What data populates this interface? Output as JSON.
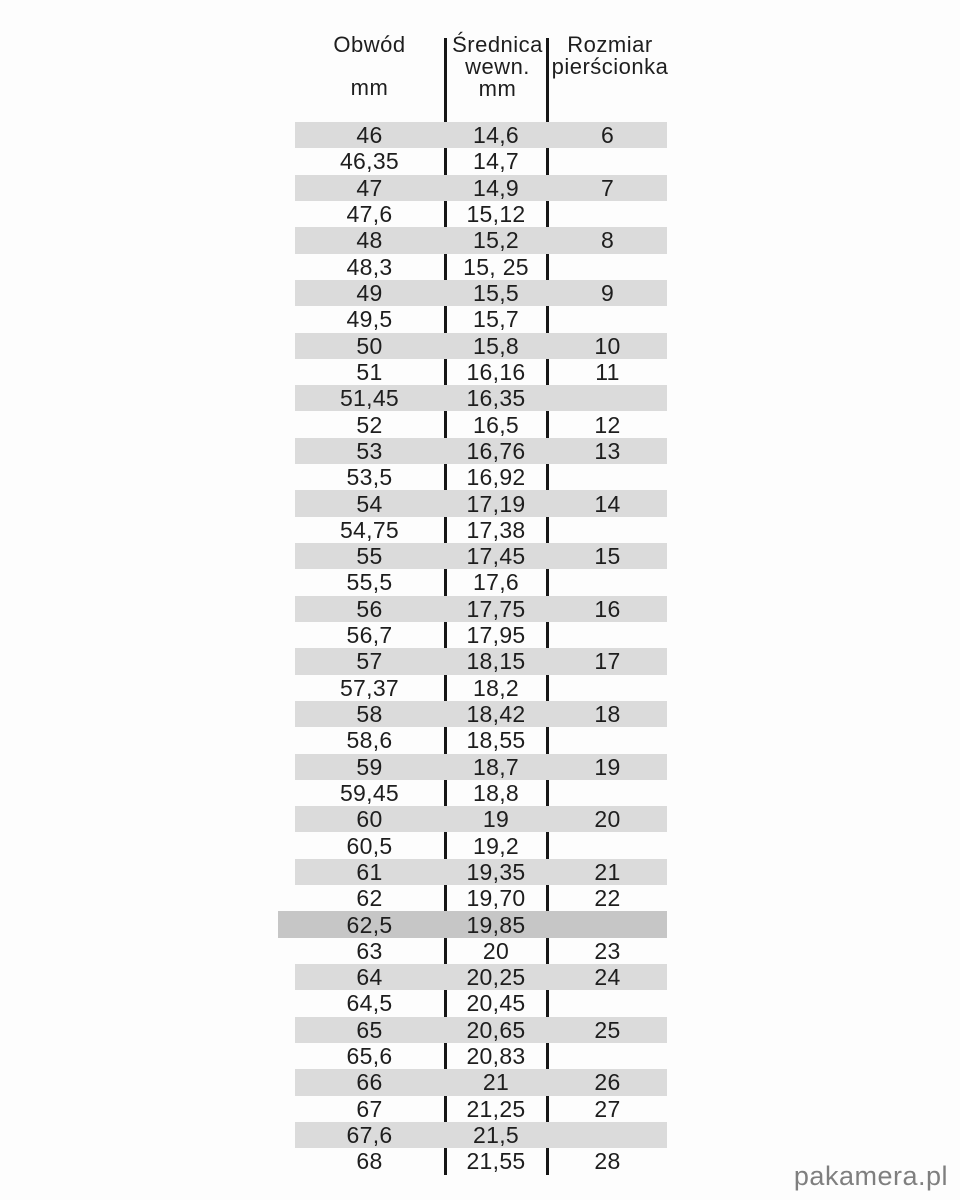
{
  "header": {
    "col1": {
      "title": "Obwód",
      "unit": "mm"
    },
    "col2": {
      "title": "Średnica",
      "title2": "wewn.",
      "unit": "mm"
    },
    "col3": {
      "title": "Rozmiar",
      "title2": "pierścionka"
    }
  },
  "chart_data": {
    "type": "table",
    "title": "Ring size conversion table (Polish)",
    "columns": [
      "Obwód mm",
      "Średnica wewn. mm",
      "Rozmiar pierścionka"
    ],
    "rows": [
      [
        "46",
        "14,6",
        "6"
      ],
      [
        "46,35",
        "14,7",
        ""
      ],
      [
        "47",
        "14,9",
        "7"
      ],
      [
        "47,6",
        "15,12",
        ""
      ],
      [
        "48",
        "15,2",
        "8"
      ],
      [
        "48,3",
        "15, 25",
        ""
      ],
      [
        "49",
        "15,5",
        "9"
      ],
      [
        "49,5",
        "15,7",
        ""
      ],
      [
        "50",
        "15,8",
        "10"
      ],
      [
        "51",
        "16,16",
        "11"
      ],
      [
        "51,45",
        "16,35",
        ""
      ],
      [
        "52",
        "16,5",
        "12"
      ],
      [
        "53",
        "16,76",
        "13"
      ],
      [
        "53,5",
        "16,92",
        ""
      ],
      [
        "54",
        "17,19",
        "14"
      ],
      [
        "54,75",
        "17,38",
        ""
      ],
      [
        "55",
        "17,45",
        "15"
      ],
      [
        "55,5",
        "17,6",
        ""
      ],
      [
        "56",
        "17,75",
        "16"
      ],
      [
        "56,7",
        "17,95",
        ""
      ],
      [
        "57",
        "18,15",
        "17"
      ],
      [
        "57,37",
        "18,2",
        ""
      ],
      [
        "58",
        "18,42",
        "18"
      ],
      [
        "58,6",
        "18,55",
        ""
      ],
      [
        "59",
        "18,7",
        "19"
      ],
      [
        "59,45",
        "18,8",
        ""
      ],
      [
        "60",
        "19",
        "20"
      ],
      [
        "60,5",
        "19,2",
        ""
      ],
      [
        "61",
        "19,35",
        "21"
      ],
      [
        "62",
        "19,70",
        "22"
      ],
      [
        "62,5",
        "19,85",
        ""
      ],
      [
        "63",
        "20",
        "23"
      ],
      [
        "64",
        "20,25",
        "24"
      ],
      [
        "64,5",
        "20,45",
        ""
      ],
      [
        "65",
        "20,65",
        "25"
      ],
      [
        "65,6",
        "20,83",
        ""
      ],
      [
        "66",
        "21",
        "26"
      ],
      [
        "67",
        "21,25",
        "27"
      ],
      [
        "67,6",
        "21,5",
        ""
      ],
      [
        "68",
        "21,55",
        "28"
      ]
    ],
    "layout": {
      "row_shading": "alternate, starting shaded at first row",
      "darker_row": "62,5",
      "grid": "two vertical divider lines only, no horizontal rules"
    }
  },
  "colors": {
    "band": "#dbdbdb",
    "band_dark": "#c6c6c6",
    "text": "#1e1e1e",
    "divider": "#161616",
    "watermark": "#7f7f7f"
  },
  "watermark": {
    "text": "pakamera.pl"
  }
}
